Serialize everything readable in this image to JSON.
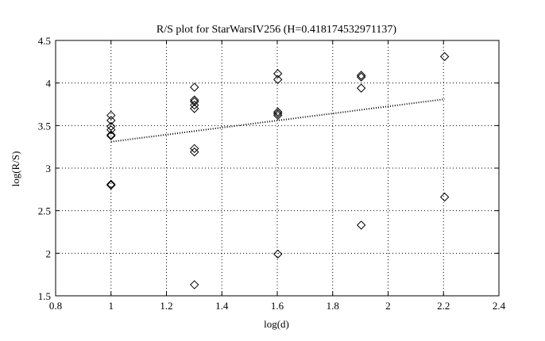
{
  "chart_data": {
    "type": "scatter",
    "title": "R/S plot for StarWarsIV256 (H=0.418174532971137)",
    "xlabel": "log(d)",
    "ylabel": "log(R/S)",
    "xlim": [
      0.8,
      2.4
    ],
    "ylim": [
      1.5,
      4.5
    ],
    "xticks": [
      0.8,
      1,
      1.2,
      1.4,
      1.6,
      1.8,
      2,
      2.2,
      2.4
    ],
    "xtick_labels": [
      "0.8",
      "1",
      "1.2",
      "1.4",
      "1.6",
      "1.8",
      "2",
      "2.2",
      "2.4"
    ],
    "yticks": [
      1.5,
      2,
      2.5,
      3,
      3.5,
      4,
      4.5
    ],
    "ytick_labels": [
      "1.5",
      "2",
      "2.5",
      "3",
      "3.5",
      "4",
      "4.5"
    ],
    "grid": true,
    "marker": "diamond",
    "points": [
      [
        1.0,
        3.62
      ],
      [
        1.0,
        3.56
      ],
      [
        1.0,
        3.49
      ],
      [
        1.0,
        3.45
      ],
      [
        1.0,
        3.39
      ],
      [
        1.0,
        3.38
      ],
      [
        1.0,
        2.81
      ],
      [
        1.0,
        2.8
      ],
      [
        1.301,
        3.95
      ],
      [
        1.301,
        3.8
      ],
      [
        1.301,
        3.78
      ],
      [
        1.301,
        3.74
      ],
      [
        1.301,
        3.7
      ],
      [
        1.301,
        3.23
      ],
      [
        1.301,
        3.19
      ],
      [
        1.301,
        1.63
      ],
      [
        1.602,
        4.11
      ],
      [
        1.602,
        4.04
      ],
      [
        1.602,
        3.66
      ],
      [
        1.602,
        3.64
      ],
      [
        1.602,
        3.62
      ],
      [
        1.602,
        1.99
      ],
      [
        1.903,
        4.09
      ],
      [
        1.903,
        4.07
      ],
      [
        1.903,
        3.94
      ],
      [
        1.903,
        2.33
      ],
      [
        2.204,
        4.31
      ],
      [
        2.204,
        2.66
      ]
    ],
    "fit_line": {
      "x": [
        1.0,
        2.204
      ],
      "y": [
        3.31,
        3.81
      ],
      "style": "dotted"
    }
  }
}
